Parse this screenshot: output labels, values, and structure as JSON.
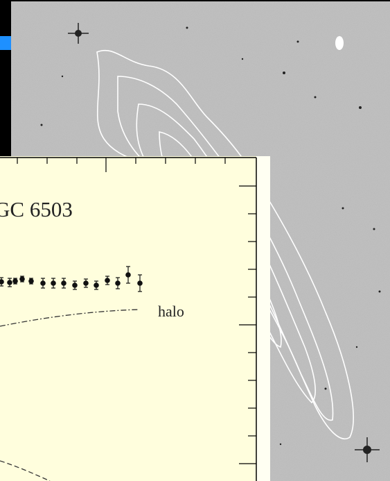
{
  "figure": {
    "title": "GC 6503",
    "curve_label": "halo"
  }
}
